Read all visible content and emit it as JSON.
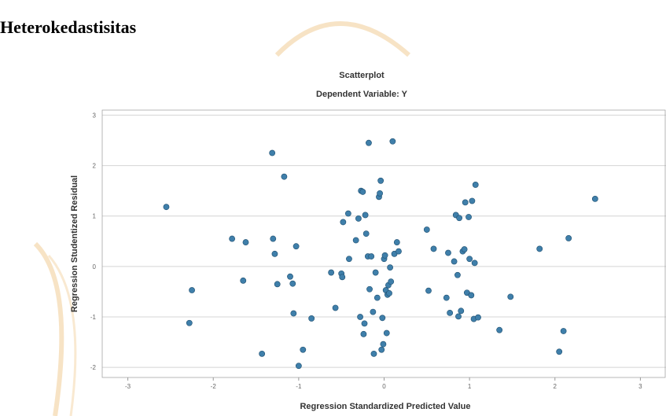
{
  "page": {
    "heading": "Heterokedastisitas"
  },
  "watermark_color": "#f0c88c",
  "point_color": "#3f7faa",
  "grid_color": "#d4d4d4",
  "chart_data": {
    "type": "scatter",
    "title": "Scatterplot",
    "subtitle": "Dependent Variable: Y",
    "xlabel": "Regression Standardized Predicted Value",
    "ylabel": "Regression Studentized Residual",
    "xlim": [
      -3.3,
      3.3
    ],
    "ylim": [
      -2.2,
      3.1
    ],
    "xticks": [
      -3,
      -2,
      -1,
      0,
      1,
      2,
      3
    ],
    "yticks": [
      -2,
      -1,
      0,
      1,
      2,
      3
    ],
    "grid": "horizontal",
    "points": [
      [
        -2.55,
        1.18
      ],
      [
        -2.25,
        -0.47
      ],
      [
        -2.28,
        -1.12
      ],
      [
        -1.78,
        0.55
      ],
      [
        -1.62,
        0.48
      ],
      [
        -1.65,
        -0.28
      ],
      [
        -1.31,
        2.25
      ],
      [
        -1.3,
        0.55
      ],
      [
        -1.28,
        0.25
      ],
      [
        -1.25,
        -0.35
      ],
      [
        -1.17,
        1.78
      ],
      [
        -1.1,
        -0.2
      ],
      [
        -1.07,
        -0.34
      ],
      [
        -1.06,
        -0.93
      ],
      [
        -1.03,
        0.4
      ],
      [
        -1.0,
        -1.97
      ],
      [
        -0.95,
        -1.65
      ],
      [
        -0.85,
        -1.03
      ],
      [
        -1.43,
        -1.73
      ],
      [
        -0.62,
        -0.12
      ],
      [
        -0.57,
        -0.82
      ],
      [
        -0.5,
        -0.14
      ],
      [
        -0.49,
        -0.21
      ],
      [
        -0.48,
        0.88
      ],
      [
        -0.42,
        1.05
      ],
      [
        -0.41,
        0.15
      ],
      [
        -0.33,
        0.52
      ],
      [
        -0.3,
        0.95
      ],
      [
        -0.28,
        -1.0
      ],
      [
        -0.27,
        1.5
      ],
      [
        -0.25,
        1.48
      ],
      [
        -0.24,
        -1.34
      ],
      [
        -0.23,
        -1.13
      ],
      [
        -0.22,
        1.02
      ],
      [
        -0.21,
        0.65
      ],
      [
        -0.19,
        0.2
      ],
      [
        -0.18,
        2.45
      ],
      [
        -0.17,
        -0.45
      ],
      [
        -0.15,
        0.2
      ],
      [
        -0.13,
        -0.9
      ],
      [
        -0.12,
        -1.73
      ],
      [
        -0.1,
        -0.12
      ],
      [
        -0.08,
        -0.62
      ],
      [
        -0.06,
        1.38
      ],
      [
        -0.05,
        1.45
      ],
      [
        -0.04,
        1.7
      ],
      [
        -0.03,
        -1.65
      ],
      [
        -0.02,
        -1.02
      ],
      [
        -0.01,
        -1.54
      ],
      [
        0.0,
        0.15
      ],
      [
        0.01,
        0.22
      ],
      [
        0.02,
        -0.47
      ],
      [
        0.03,
        -1.32
      ],
      [
        0.04,
        -0.56
      ],
      [
        0.05,
        -0.37
      ],
      [
        0.06,
        -0.53
      ],
      [
        0.07,
        -0.02
      ],
      [
        0.08,
        -0.3
      ],
      [
        0.1,
        2.48
      ],
      [
        0.12,
        0.25
      ],
      [
        0.15,
        0.48
      ],
      [
        0.17,
        0.3
      ],
      [
        0.5,
        0.73
      ],
      [
        0.52,
        -0.48
      ],
      [
        0.58,
        0.35
      ],
      [
        0.73,
        -0.62
      ],
      [
        0.75,
        0.27
      ],
      [
        0.77,
        -0.92
      ],
      [
        0.82,
        0.1
      ],
      [
        0.84,
        1.02
      ],
      [
        0.86,
        -0.17
      ],
      [
        0.87,
        -0.99
      ],
      [
        0.88,
        0.96
      ],
      [
        0.9,
        -0.88
      ],
      [
        0.92,
        0.3
      ],
      [
        0.94,
        0.34
      ],
      [
        0.95,
        1.27
      ],
      [
        0.97,
        -0.52
      ],
      [
        0.99,
        0.98
      ],
      [
        1.0,
        0.15
      ],
      [
        1.02,
        -0.57
      ],
      [
        1.03,
        1.3
      ],
      [
        1.05,
        -1.04
      ],
      [
        1.06,
        0.07
      ],
      [
        1.07,
        1.62
      ],
      [
        1.1,
        -1.01
      ],
      [
        1.35,
        -1.26
      ],
      [
        1.48,
        -0.6
      ],
      [
        1.82,
        0.35
      ],
      [
        2.05,
        -1.69
      ],
      [
        2.1,
        -1.28
      ],
      [
        2.16,
        0.56
      ],
      [
        2.47,
        1.34
      ]
    ]
  }
}
